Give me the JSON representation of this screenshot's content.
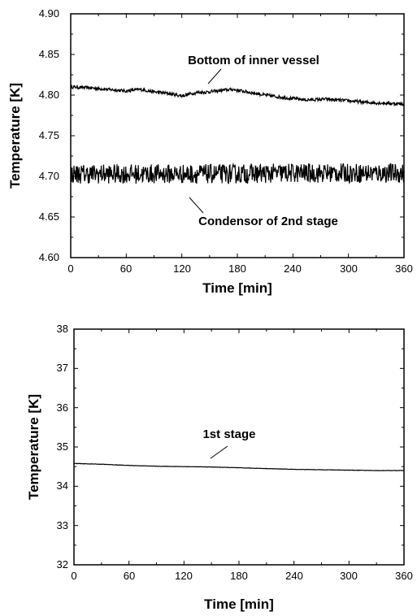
{
  "chart_data": [
    {
      "type": "line",
      "xlabel": "Time [min]",
      "ylabel": "Temperature [K]",
      "xlim": [
        0,
        360
      ],
      "ylim": [
        4.6,
        4.9
      ],
      "xticks": [
        "0",
        "60",
        "120",
        "180",
        "240",
        "300",
        "360"
      ],
      "yticks": [
        "4.60",
        "4.65",
        "4.70",
        "4.75",
        "4.80",
        "4.85",
        "4.90"
      ],
      "grid": false,
      "annotations": [
        {
          "text": "Bottom of inner vessel",
          "target": {
            "x": 150,
            "y": 4.806
          }
        },
        {
          "text": "Condensor of 2nd stage",
          "target": {
            "x": 128,
            "y": 4.686
          }
        }
      ],
      "series": [
        {
          "x": [
            0,
            20,
            40,
            60,
            75,
            90,
            105,
            120,
            135,
            150,
            165,
            175,
            190,
            210,
            230,
            255,
            275,
            300,
            320,
            340,
            360
          ],
          "y": [
            4.81,
            4.809,
            4.807,
            4.805,
            4.807,
            4.804,
            4.802,
            4.799,
            4.803,
            4.804,
            4.806,
            4.807,
            4.804,
            4.8,
            4.797,
            4.794,
            4.795,
            4.793,
            4.791,
            4.79,
            4.789
          ],
          "noise": 0.002
        },
        {
          "x": [
            0,
            60,
            120,
            180,
            240,
            300,
            360
          ],
          "y": [
            4.703,
            4.703,
            4.703,
            4.703,
            4.704,
            4.704,
            4.704
          ],
          "noise": 0.012
        }
      ]
    },
    {
      "type": "line",
      "xlabel": "Time [min]",
      "ylabel": "Temperature [K]",
      "xlim": [
        0,
        360
      ],
      "ylim": [
        32,
        38
      ],
      "xticks": [
        "0",
        "60",
        "120",
        "180",
        "240",
        "300",
        "360"
      ],
      "yticks": [
        "32",
        "33",
        "34",
        "35",
        "36",
        "37",
        "38"
      ],
      "grid": false,
      "annotations": [
        {
          "text": "1st stage",
          "target": {
            "x": 170,
            "y": 34.5
          }
        }
      ],
      "series": [
        {
          "x": [
            0,
            30,
            60,
            90,
            120,
            150,
            180,
            210,
            240,
            270,
            300,
            330,
            360
          ],
          "y": [
            34.58,
            34.56,
            34.53,
            34.51,
            34.5,
            34.49,
            34.47,
            34.45,
            34.43,
            34.42,
            34.41,
            34.4,
            34.4
          ],
          "noise": 0.005
        }
      ]
    }
  ]
}
